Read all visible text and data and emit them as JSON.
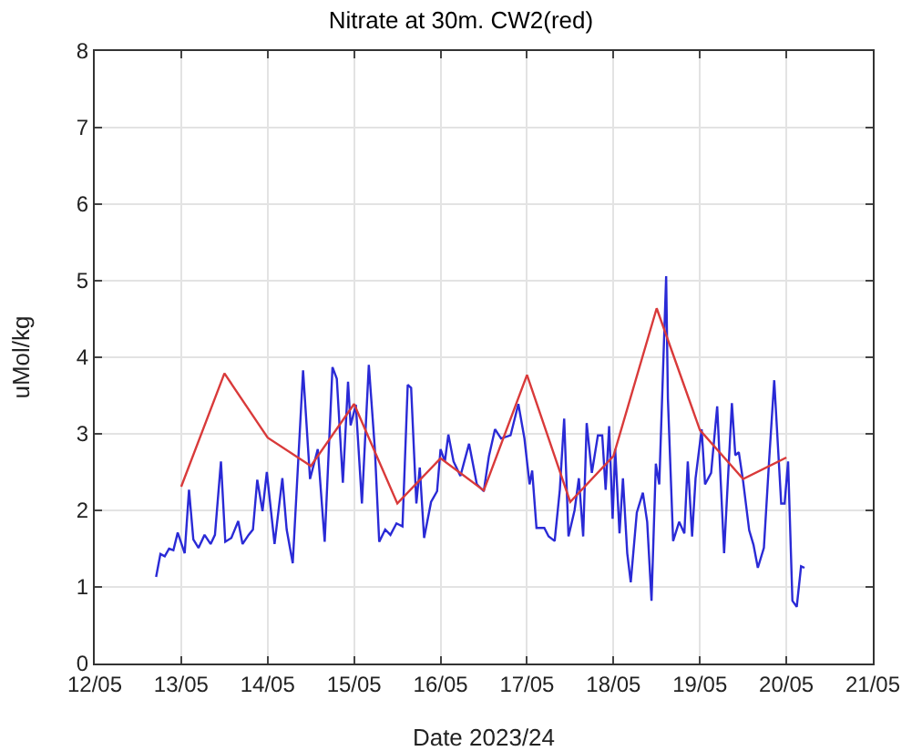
{
  "chart_data": {
    "type": "line",
    "title": "Nitrate at 30m. CW2(red)",
    "xlabel": "Date 2023/24",
    "ylabel": "uMol/kg",
    "xlim": [
      "--05-12",
      "--05-21"
    ],
    "xticks": [
      {
        "value": "--05-12",
        "label": "12/05"
      },
      {
        "value": "--05-13",
        "label": "13/05"
      },
      {
        "value": "--05-14",
        "label": "14/05"
      },
      {
        "value": "--05-15",
        "label": "15/05"
      },
      {
        "value": "--05-16",
        "label": "16/05"
      },
      {
        "value": "--05-17",
        "label": "17/05"
      },
      {
        "value": "--05-18",
        "label": "18/05"
      },
      {
        "value": "--05-19",
        "label": "19/05"
      },
      {
        "value": "--05-20",
        "label": "20/05"
      },
      {
        "value": "--05-21",
        "label": "21/05"
      }
    ],
    "ylim": [
      0,
      8
    ],
    "yticks": [
      0,
      1,
      2,
      3,
      4,
      5,
      6,
      7,
      8
    ],
    "grid": true,
    "marker": "none",
    "line_style": "solid",
    "series": [
      {
        "color": "#2a2ad6",
        "x": [
          "--05-12T17:02",
          "--05-12T18:14",
          "--05-12T19:26",
          "--05-12T20:38",
          "--05-12T21:50",
          "--05-12T23:02",
          "--05-13T00:58",
          "--05-13T02:10",
          "--05-13T03:22",
          "--05-13T04:48",
          "--05-13T06:29",
          "--05-13T08:10",
          "--05-13T09:22",
          "--05-13T11:02",
          "--05-13T12:14",
          "--05-13T13:55",
          "--05-13T15:50",
          "--05-13T17:02",
          "--05-13T18:43",
          "--05-13T19:55",
          "--05-13T21:07",
          "--05-13T22:34",
          "--05-13T23:46",
          "--05-14T01:55",
          "--05-14T04:05",
          "--05-14T05:17",
          "--05-14T06:58",
          "--05-14T09:50",
          "--05-14T11:46",
          "--05-14T13:55",
          "--05-14T15:50",
          "--05-14T18:00",
          "--05-14T19:12",
          "--05-14T20:53",
          "--05-14T22:19",
          "--05-14T23:02",
          "--05-15T00:29",
          "--05-15T02:10",
          "--05-15T04:05",
          "--05-15T05:46",
          "--05-15T06:58",
          "--05-15T08:38",
          "--05-15T10:05",
          "--05-15T11:46",
          "--05-15T13:26",
          "--05-15T14:53",
          "--05-15T15:50",
          "--05-15T17:17",
          "--05-15T18:14",
          "--05-15T19:26",
          "--05-15T21:22",
          "--05-15T23:02",
          "--05-16T00:00",
          "--05-16T01:12",
          "--05-16T02:10",
          "--05-16T03:36",
          "--05-16T05:31",
          "--05-16T07:55",
          "--05-16T10:05",
          "--05-16T12:00",
          "--05-16T13:26",
          "--05-16T15:07",
          "--05-16T16:48",
          "--05-16T19:26",
          "--05-16T21:36",
          "--05-16T23:17",
          "--05-17T00:43",
          "--05-17T01:26",
          "--05-17T02:38",
          "--05-17T04:48",
          "--05-17T06:00",
          "--05-17T07:41",
          "--05-17T09:07",
          "--05-17T10:19",
          "--05-17T11:31",
          "--05-17T13:12",
          "--05-17T14:24",
          "--05-17T15:36",
          "--05-17T16:34",
          "--05-17T18:00",
          "--05-17T19:41",
          "--05-17T20:53",
          "--05-17T21:50",
          "--05-17T22:48",
          "--05-17T23:46",
          "--05-18T00:29",
          "--05-18T01:41",
          "--05-18T02:38",
          "--05-18T03:50",
          "--05-18T04:48",
          "--05-18T06:29",
          "--05-18T08:10",
          "--05-18T09:22",
          "--05-18T10:34",
          "--05-18T11:46",
          "--05-18T12:43",
          "--05-18T14:38",
          "--05-18T15:07",
          "--05-18T16:34",
          "--05-18T18:14",
          "--05-18T19:41",
          "--05-18T20:38",
          "--05-18T21:50",
          "--05-18T22:48",
          "--05-19T00:29",
          "--05-19T01:26",
          "--05-19T03:07",
          "--05-19T04:48",
          "--05-19T06:43",
          "--05-19T08:53",
          "--05-19T09:50",
          "--05-19T10:48",
          "--05-19T12:00",
          "--05-19T13:41",
          "--05-19T14:53",
          "--05-19T16:05",
          "--05-19T17:46",
          "--05-19T19:12",
          "--05-19T20:38",
          "--05-19T22:34",
          "--05-19T23:31",
          "--05-20T00:29",
          "--05-20T01:41",
          "--05-20T02:53",
          "--05-20T04:05",
          "--05-20T05:02"
        ],
        "values": [
          1.13,
          1.43,
          1.4,
          1.5,
          1.48,
          1.71,
          1.44,
          2.27,
          1.62,
          1.51,
          1.68,
          1.56,
          1.68,
          2.64,
          1.59,
          1.64,
          1.86,
          1.56,
          1.68,
          1.75,
          2.4,
          1.99,
          2.5,
          1.56,
          2.42,
          1.75,
          1.31,
          3.83,
          2.41,
          2.8,
          1.59,
          3.87,
          3.72,
          2.36,
          3.68,
          3.11,
          3.38,
          2.09,
          3.9,
          2.8,
          1.59,
          1.75,
          1.68,
          1.83,
          1.79,
          3.64,
          3.6,
          2.09,
          2.56,
          1.64,
          2.11,
          2.25,
          2.8,
          2.64,
          2.99,
          2.64,
          2.45,
          2.87,
          2.34,
          2.25,
          2.71,
          3.06,
          2.94,
          2.98,
          3.39,
          2.94,
          2.34,
          2.52,
          1.77,
          1.77,
          1.66,
          1.6,
          2.27,
          3.2,
          1.66,
          2.0,
          2.42,
          1.66,
          3.14,
          2.49,
          2.98,
          2.98,
          2.27,
          3.1,
          1.89,
          2.8,
          1.7,
          2.42,
          1.44,
          1.06,
          1.97,
          2.23,
          1.85,
          0.82,
          2.61,
          2.34,
          5.06,
          3.46,
          1.6,
          1.85,
          1.7,
          2.64,
          1.66,
          2.42,
          3.06,
          2.34,
          2.49,
          3.36,
          1.44,
          3.4,
          2.72,
          2.76,
          2.38,
          1.74,
          1.55,
          1.25,
          1.51,
          2.64,
          3.7,
          2.09,
          2.09,
          2.64,
          0.82,
          0.74,
          1.27,
          1.25
        ]
      },
      {
        "color": "#d93a3a",
        "x": [
          "--05-13",
          "--05-13T12:00",
          "--05-14",
          "--05-14T12:00",
          "--05-15",
          "--05-15T12:00",
          "--05-16",
          "--05-16T12:00",
          "--05-17",
          "--05-17T12:00",
          "--05-18",
          "--05-18T12:00",
          "--05-19",
          "--05-19T12:00",
          "--05-20"
        ],
        "values": [
          2.31,
          3.79,
          2.95,
          2.58,
          3.39,
          2.09,
          2.68,
          2.26,
          3.77,
          2.11,
          2.71,
          4.64,
          3.05,
          2.41,
          2.69
        ]
      }
    ]
  }
}
